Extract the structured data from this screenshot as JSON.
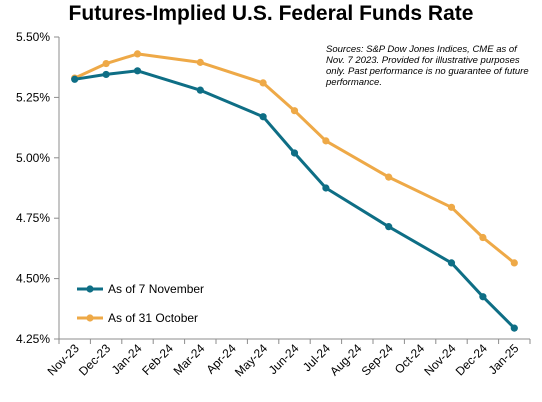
{
  "chart_data": {
    "type": "line",
    "title": "Futures-Implied U.S. Federal Funds Rate",
    "note": "Sources: S&P Dow Jones Indices, CME as of Nov. 7 2023.  Provided for illustrative purposes only.  Past performance is no guarantee of future performance.",
    "categories": [
      "Nov-23",
      "Dec-23",
      "Jan-24",
      "Feb-24",
      "Mar-24",
      "Apr-24",
      "May-24",
      "Jun-24",
      "Jul-24",
      "Aug-24",
      "Sep-24",
      "Oct-24",
      "Nov-24",
      "Dec-24",
      "Jan-25"
    ],
    "y_tick_labels": [
      "4.25%",
      "4.50%",
      "4.75%",
      "5.00%",
      "5.25%",
      "5.50%"
    ],
    "ylim": [
      4.25,
      5.5
    ],
    "legend_position": "bottom-left",
    "grid": false,
    "series": [
      {
        "name": "As of 7 November",
        "color": "#0e6e85",
        "points": [
          [
            0,
            5.325
          ],
          [
            1,
            5.345
          ],
          [
            2,
            5.36
          ],
          [
            4,
            5.28
          ],
          [
            6,
            5.17
          ],
          [
            7,
            5.02
          ],
          [
            8,
            4.875
          ],
          [
            10,
            4.715
          ],
          [
            12,
            4.565
          ],
          [
            13,
            4.425
          ],
          [
            14,
            4.295
          ]
        ]
      },
      {
        "name": "As of 31 October",
        "color": "#eea947",
        "points": [
          [
            0,
            5.33
          ],
          [
            1,
            5.39
          ],
          [
            2,
            5.43
          ],
          [
            4,
            5.395
          ],
          [
            6,
            5.31
          ],
          [
            7,
            5.195
          ],
          [
            8,
            5.07
          ],
          [
            10,
            4.92
          ],
          [
            12,
            4.795
          ],
          [
            13,
            4.67
          ],
          [
            14,
            4.565
          ]
        ]
      }
    ]
  }
}
